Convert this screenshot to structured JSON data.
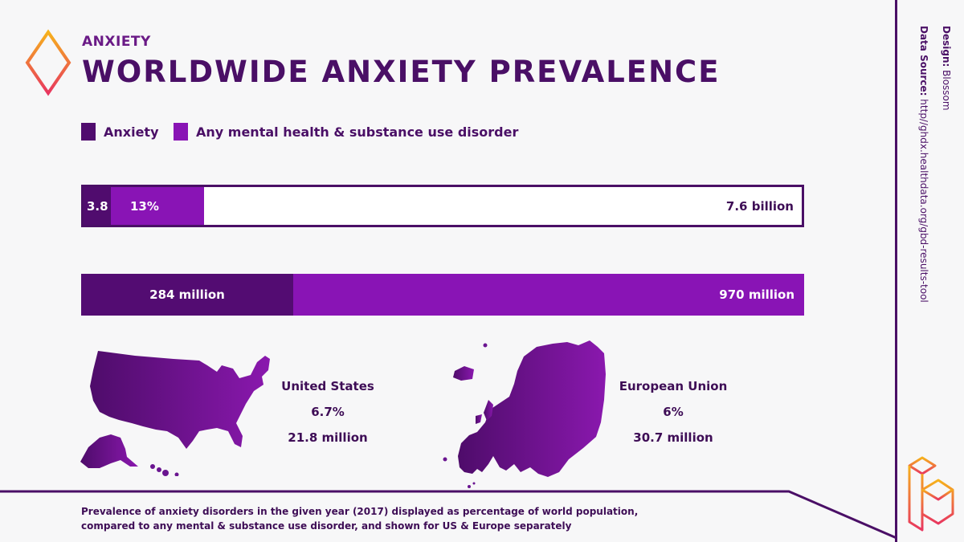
{
  "header": {
    "kicker": "ANXIETY",
    "title": "WORLDWIDE ANXIETY PREVALENCE"
  },
  "legend": [
    {
      "label": "Anxiety",
      "color": "#500c6e"
    },
    {
      "label": "Any mental health & substance use disorder",
      "color": "#8914b5"
    }
  ],
  "chart_data": {
    "type": "bar",
    "orientation": "horizontal",
    "stacked": true,
    "bars": [
      {
        "segments": [
          {
            "series": "Anxiety",
            "value": 3.8,
            "label": "3.8"
          },
          {
            "series": "Any mental health & substance use disorder",
            "value": 13,
            "label": "13%"
          }
        ],
        "total": 100,
        "total_label": "7.6 billion",
        "unit": "%"
      },
      {
        "segments": [
          {
            "series": "Anxiety",
            "value": 284,
            "label": "284 million"
          },
          {
            "series": "Any mental health & substance use disorder",
            "value": 970,
            "label": "970 million"
          }
        ],
        "total": 970,
        "unit": "million"
      }
    ]
  },
  "regions": [
    {
      "name": "United States",
      "percent": "6.7%",
      "count": "21.8 million"
    },
    {
      "name": "European Union",
      "percent": "6%",
      "count": "30.7 million"
    }
  ],
  "footnote": "Prevalence of anxiety disorders in the given year (2017) displayed as percentage of world population, compared to any mental & substance use disorder, and shown for US & Europe separately",
  "credits": {
    "design_key": "Design:",
    "design_value": "Blossom",
    "source_key": "Data Source:",
    "source_value": "http//ghdx.healthdata.org/gbd-results-tool"
  },
  "icons": {
    "header_logo": "diamond-outline-icon",
    "brand_logo": "blossom-b-logo-icon"
  }
}
